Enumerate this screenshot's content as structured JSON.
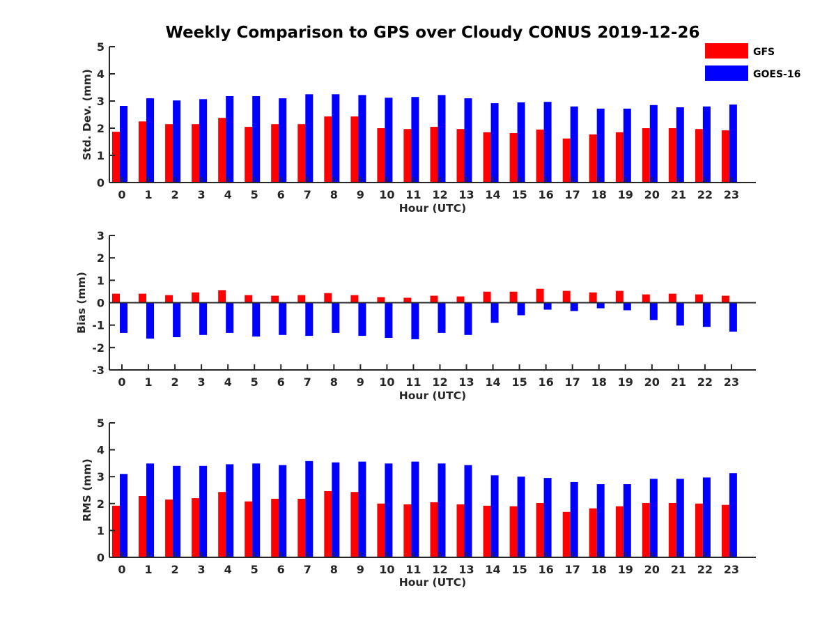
{
  "chart_data": {
    "title": "Weekly Comparison to GPS over Cloudy CONUS 2019-12-26",
    "type": "bar",
    "legend": {
      "placement": "top-right",
      "entries": [
        {
          "name": "GFS",
          "color": "#ff0000"
        },
        {
          "name": "GOES-16",
          "color": "#0000ff"
        }
      ]
    },
    "categories": [
      "0",
      "1",
      "2",
      "3",
      "4",
      "5",
      "6",
      "7",
      "8",
      "9",
      "10",
      "11",
      "12",
      "13",
      "14",
      "15",
      "16",
      "17",
      "18",
      "19",
      "20",
      "21",
      "22",
      "23"
    ],
    "panels": [
      {
        "type": "bar",
        "ylabel": "Std. Dev. (mm)",
        "xlabel": "Hour (UTC)",
        "ylim": [
          0,
          5
        ],
        "yticks": [
          "0",
          "1",
          "2",
          "3",
          "4",
          "5"
        ],
        "series": [
          {
            "name": "GFS",
            "color": "#ff0000",
            "values": [
              1.87,
              2.25,
              2.15,
              2.15,
              2.38,
              2.05,
              2.15,
              2.15,
              2.43,
              2.43,
              2.0,
              1.97,
              2.05,
              1.97,
              1.85,
              1.82,
              1.95,
              1.62,
              1.77,
              1.85,
              2.0,
              2.0,
              1.97,
              1.92
            ]
          },
          {
            "name": "GOES-16",
            "color": "#0000ff",
            "values": [
              2.82,
              3.1,
              3.02,
              3.07,
              3.18,
              3.18,
              3.1,
              3.25,
              3.25,
              3.22,
              3.12,
              3.15,
              3.22,
              3.1,
              2.92,
              2.95,
              2.97,
              2.8,
              2.72,
              2.72,
              2.85,
              2.77,
              2.8,
              2.87
            ]
          }
        ]
      },
      {
        "type": "bar",
        "ylabel": "Bias (mm)",
        "xlabel": "Hour (UTC)",
        "ylim": [
          -3,
          3
        ],
        "yticks": [
          "-3",
          "-2",
          "-1",
          "0",
          "1",
          "2",
          "3"
        ],
        "series": [
          {
            "name": "GFS",
            "color": "#ff0000",
            "values": [
              0.4,
              0.4,
              0.34,
              0.46,
              0.56,
              0.34,
              0.31,
              0.34,
              0.43,
              0.34,
              0.25,
              0.22,
              0.31,
              0.28,
              0.49,
              0.49,
              0.62,
              0.53,
              0.46,
              0.53,
              0.37,
              0.4,
              0.37,
              0.31
            ]
          },
          {
            "name": "GOES-16",
            "color": "#0000ff",
            "values": [
              -1.35,
              -1.6,
              -1.54,
              -1.44,
              -1.35,
              -1.51,
              -1.44,
              -1.48,
              -1.35,
              -1.48,
              -1.57,
              -1.63,
              -1.35,
              -1.44,
              -0.9,
              -0.56,
              -0.31,
              -0.37,
              -0.25,
              -0.34,
              -0.77,
              -1.02,
              -1.08,
              -1.29
            ]
          }
        ]
      },
      {
        "type": "bar",
        "ylabel": "RMS (mm)",
        "xlabel": "Hour (UTC)",
        "ylim": [
          0,
          5
        ],
        "yticks": [
          "0",
          "1",
          "2",
          "3",
          "4",
          "5"
        ],
        "series": [
          {
            "name": "GFS",
            "color": "#ff0000",
            "values": [
              1.92,
              2.28,
              2.15,
              2.2,
              2.43,
              2.08,
              2.18,
              2.18,
              2.46,
              2.43,
              2.0,
              1.97,
              2.05,
              1.97,
              1.92,
              1.9,
              2.02,
              1.69,
              1.82,
              1.9,
              2.02,
              2.02,
              2.0,
              1.95
            ]
          },
          {
            "name": "GOES-16",
            "color": "#0000ff",
            "values": [
              3.1,
              3.49,
              3.4,
              3.4,
              3.46,
              3.49,
              3.43,
              3.58,
              3.53,
              3.56,
              3.49,
              3.56,
              3.49,
              3.43,
              3.05,
              3.0,
              2.95,
              2.8,
              2.72,
              2.72,
              2.92,
              2.92,
              2.97,
              3.13
            ]
          }
        ]
      }
    ]
  }
}
